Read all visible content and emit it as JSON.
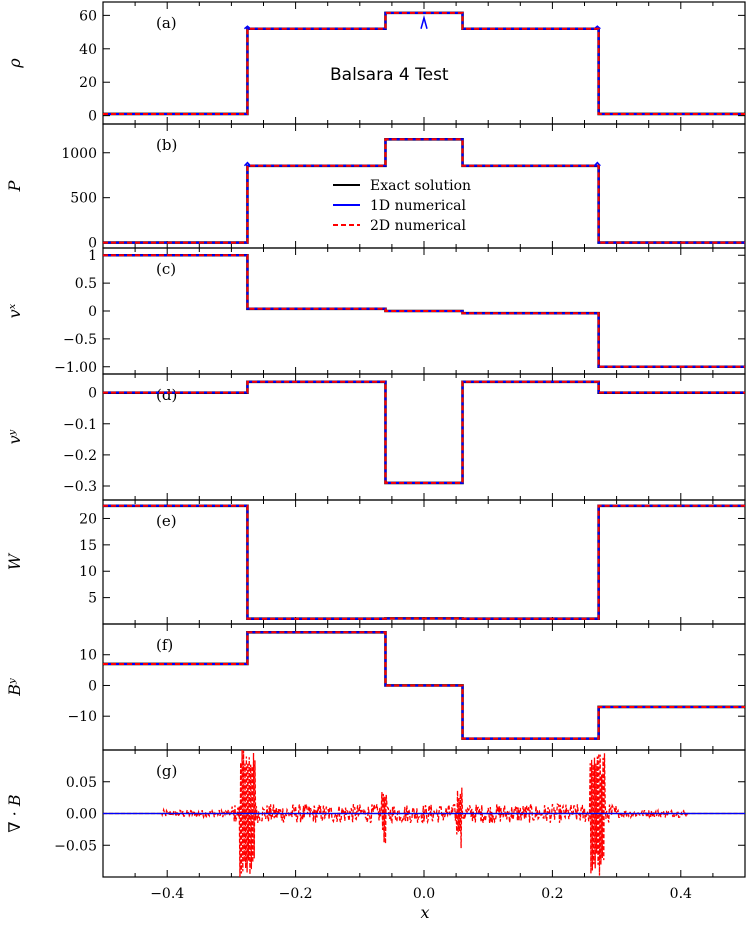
{
  "chart_data": {
    "type": "line",
    "title": "Balsara 4 Test",
    "xlabel": "x",
    "xlim": [
      -0.5,
      0.5
    ],
    "xticks": [
      -0.4,
      -0.2,
      0.0,
      0.2,
      0.4
    ],
    "xtick_labels": [
      "−0.4",
      "−0.2",
      "0.0",
      "0.2",
      "0.4"
    ],
    "grid": false,
    "legend": {
      "placement": "in panel (b), center",
      "entries": [
        {
          "name": "Exact solution",
          "color": "#000000",
          "style": "solid"
        },
        {
          "name": "1D numerical",
          "color": "#0000ff",
          "style": "solid"
        },
        {
          "name": "2D numerical",
          "color": "#ff0000",
          "style": "dashed"
        }
      ]
    },
    "panels": [
      {
        "label": "(a)",
        "ylabel": "ρ",
        "ylim": [
          -5,
          68
        ],
        "yticks": [
          0,
          20,
          40,
          60
        ],
        "ytick_labels": [
          "0",
          "20",
          "40",
          "60"
        ],
        "x": [
          -0.5,
          -0.275,
          -0.275,
          -0.06,
          -0.06,
          0.06,
          0.06,
          0.272,
          0.272,
          0.5
        ],
        "y": [
          1,
          1,
          52,
          52,
          61.5,
          61.5,
          52,
          52,
          1,
          1
        ],
        "blips": [
          {
            "x": 0.0,
            "y": 58.5
          },
          {
            "x": -0.275,
            "y": 53.5
          },
          {
            "x": 0.27,
            "y": 53.5
          }
        ]
      },
      {
        "label": "(b)",
        "ylabel": "P",
        "ylim": [
          -60,
          1320
        ],
        "yticks": [
          0,
          500,
          1000
        ],
        "ytick_labels": [
          "0",
          "500",
          "1000"
        ],
        "x": [
          -0.5,
          -0.275,
          -0.275,
          -0.06,
          -0.06,
          0.06,
          0.06,
          0.272,
          0.272,
          0.5
        ],
        "y": [
          0.1,
          0.1,
          855,
          855,
          1150,
          1150,
          855,
          855,
          0.1,
          0.1
        ],
        "blips": [
          {
            "x": -0.275,
            "y": 890
          },
          {
            "x": 0.27,
            "y": 890
          }
        ]
      },
      {
        "label": "(c)",
        "ylabel": "vˣ",
        "ylim": [
          -1.13,
          1.13
        ],
        "yticks": [
          1,
          0.5,
          0,
          -0.5,
          -1
        ],
        "ytick_labels": [
          "1",
          "0.5",
          "0",
          "−0.5",
          "−1.00"
        ],
        "x": [
          -0.5,
          -0.275,
          -0.275,
          -0.06,
          -0.06,
          0.06,
          0.06,
          0.272,
          0.272,
          0.5
        ],
        "y": [
          1,
          1,
          0.04,
          0.04,
          0.0,
          0.0,
          -0.04,
          -0.04,
          -1,
          -1
        ]
      },
      {
        "label": "(d)",
        "ylabel": "vʸ",
        "ylim": [
          -0.345,
          0.06
        ],
        "yticks": [
          0,
          -0.1,
          -0.2,
          -0.3
        ],
        "ytick_labels": [
          "0",
          "−0.1",
          "−0.2",
          "−0.3"
        ],
        "x": [
          -0.5,
          -0.275,
          -0.275,
          -0.06,
          -0.06,
          0.06,
          0.06,
          0.272,
          0.272,
          0.5
        ],
        "y": [
          0,
          0,
          0.035,
          0.035,
          -0.29,
          -0.29,
          0.035,
          0.035,
          0,
          0
        ]
      },
      {
        "label": "(e)",
        "ylabel": "W",
        "ylim": [
          0,
          23.5
        ],
        "yticks": [
          5,
          10,
          15,
          20
        ],
        "ytick_labels": [
          "5",
          "10",
          "15",
          "20"
        ],
        "x": [
          -0.5,
          -0.275,
          -0.275,
          -0.06,
          -0.06,
          0.06,
          0.06,
          0.272,
          0.272,
          0.5
        ],
        "y": [
          22.4,
          22.4,
          1.0,
          1.0,
          1.05,
          1.05,
          1.0,
          1.0,
          22.4,
          22.4
        ]
      },
      {
        "label": "(f)",
        "ylabel": "Bʸ",
        "ylim": [
          -21,
          20
        ],
        "yticks": [
          10,
          0,
          -10
        ],
        "ytick_labels": [
          "10",
          "0",
          "−10"
        ],
        "x": [
          -0.5,
          -0.275,
          -0.275,
          -0.06,
          -0.06,
          0.06,
          0.06,
          0.272,
          0.272,
          0.5
        ],
        "y": [
          7,
          7,
          17.3,
          17.3,
          0,
          0,
          -17.3,
          -17.3,
          -7,
          -7
        ]
      },
      {
        "label": "(g)",
        "ylabel": "∇ · B",
        "ylim": [
          -0.1,
          0.1
        ],
        "yticks": [
          0.05,
          0.0,
          -0.05
        ],
        "ytick_labels": [
          "0.05",
          "0.00",
          "−0.05"
        ],
        "x": [
          -0.5,
          0.5
        ],
        "y": [
          0,
          0
        ],
        "noise": {
          "series": "2D numerical",
          "spikes": [
            {
              "center": -0.275,
              "amplitude": 0.1,
              "width": 0.012
            },
            {
              "center": 0.27,
              "amplitude": 0.1,
              "width": 0.012
            },
            {
              "center": 0.055,
              "amplitude": 0.05,
              "width": 0.004
            },
            {
              "center": -0.062,
              "amplitude": 0.035,
              "width": 0.004
            }
          ],
          "background_amplitude": 0.015,
          "active_range": [
            -0.41,
            0.41
          ]
        }
      }
    ]
  }
}
